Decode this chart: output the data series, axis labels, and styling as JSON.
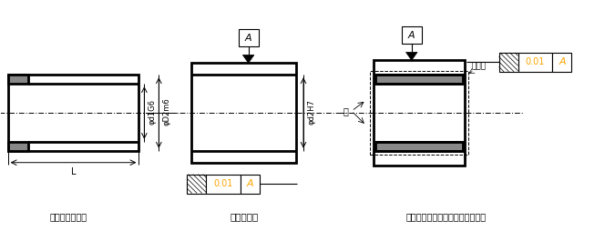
{
  "bg_color": "#ffffff",
  "line_color": "#000000",
  "gray_color": "#888888",
  "orange_color": "#FFA500",
  "label_bushu": "無給油ブ菃シュ",
  "label_housing": "ハウジング",
  "label_assembly": "無給油ブ菃シュを装置に組み込み",
  "label_dim_d1G6": "φd1G6",
  "label_dim_D2m6": "φD2m6",
  "label_dim_d2H7": "φd2H7",
  "label_L": "L",
  "label_jiku": "軸",
  "label_sukima": "すき間",
  "label_A": "A",
  "tolerance_value": "0.01"
}
